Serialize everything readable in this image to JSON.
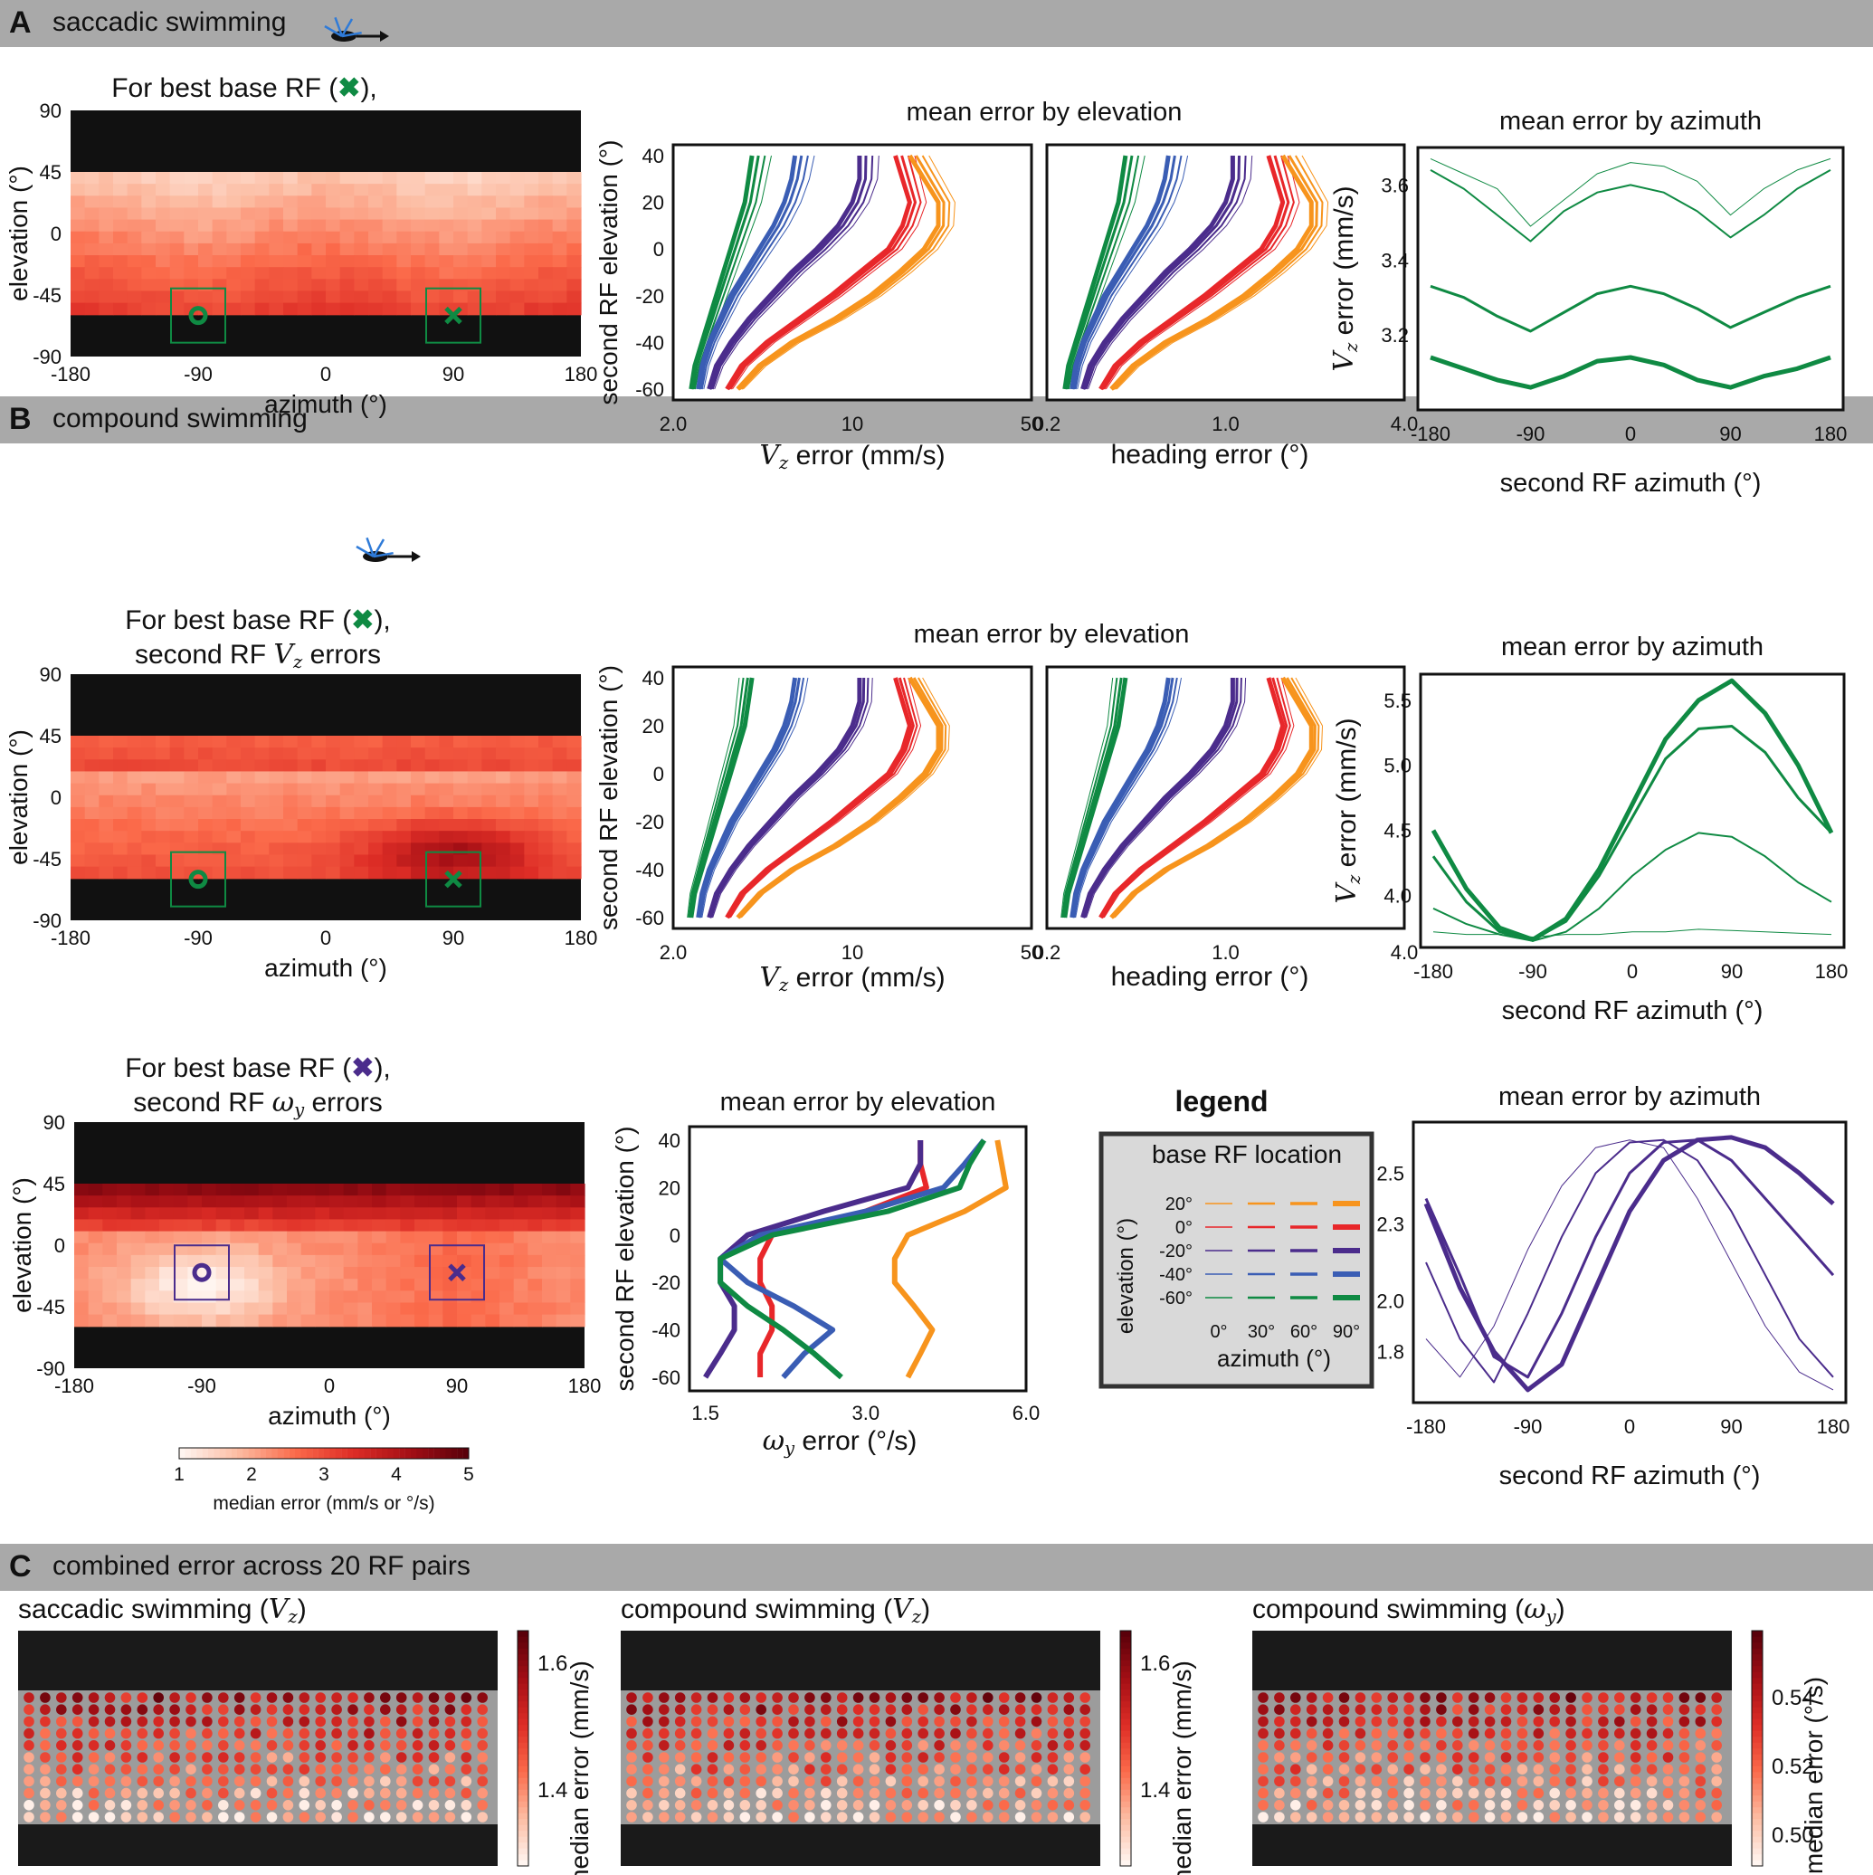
{
  "sections": {
    "A": {
      "letter": "A",
      "title": "saccadic swimming"
    },
    "B": {
      "letter": "B",
      "title": "compound swimming"
    },
    "C": {
      "letter": "C",
      "title": "combined error across 20 RF pairs"
    }
  },
  "common": {
    "azimuth_label": "azimuth (°)",
    "elevation_label": "elevation (°)",
    "second_rf_elevation": "second RF elevation (°)",
    "second_rf_azimuth": "second RF azimuth (°)",
    "mean_error_by_elevation": "mean error by elevation",
    "mean_error_by_azimuth": "mean error by azimuth",
    "heading_error": "heading error (°)",
    "vz_error": "error (mm/s)",
    "wy_error": "error (°/s)",
    "vz_symbol": "V",
    "vz_sub": "z",
    "wy_symbol": "ω",
    "wy_sub": "y",
    "heat_title_line1_pre": "For best base RF (",
    "heat_title_line1_post": "),",
    "heat_title_line2_pre": "second RF",
    "heat_title_line2_post": "errors",
    "heat_xticks": [
      "-180",
      "-90",
      "0",
      "90",
      "180"
    ],
    "heat_yticks": [
      "90",
      "45",
      "0",
      "-45",
      "-90"
    ],
    "elev_yticks": [
      "40",
      "20",
      "0",
      "-20",
      "-40",
      "-60"
    ],
    "az_xticks": [
      "-180",
      "-90",
      "0",
      "90",
      "180"
    ]
  },
  "colorbar": {
    "ticks": [
      "1",
      "2",
      "3",
      "4",
      "5"
    ],
    "label": "median error (mm/s or °/s)"
  },
  "legend": {
    "title": "legend",
    "box_title": "base RF location",
    "y_label": "elevation (°)",
    "x_label": "azimuth (°)",
    "rows": [
      "20°",
      "0°",
      "-20°",
      "-40°",
      "-60°"
    ],
    "cols": [
      "0°",
      "30°",
      "60°",
      "90°"
    ],
    "row_colors": [
      "#f7941d",
      "#e8272a",
      "#4b2c8c",
      "#3a5db4",
      "#0f8a43"
    ]
  },
  "colors": {
    "green": "#0f8a43",
    "purple": "#4b2c8c",
    "orange": "#f7941d",
    "red": "#e8272a",
    "blue": "#3a5db4"
  },
  "panel_C": {
    "titles": [
      "saccadic swimming (",
      "compound swimming (",
      "compound swimming ("
    ],
    "symbols": [
      "V",
      "V",
      "ω"
    ],
    "subs": [
      "z",
      "z",
      "y"
    ],
    "cb_labels": [
      "median error (mm/s)",
      "median error (mm/s)",
      "median error (°/s)"
    ],
    "cb_ticks": [
      [
        "1.6",
        "1.4"
      ],
      [
        "1.6",
        "1.4"
      ],
      [
        "0.54",
        "0.52",
        "0.50"
      ]
    ]
  },
  "chart_data": [
    {
      "type": "line",
      "id": "A-vz-azimuth",
      "title": "mean error by azimuth",
      "xlabel": "second RF azimuth (°)",
      "ylabel": "V_z error (mm/s)",
      "ylim": [
        3.0,
        3.7
      ],
      "yticks": [
        "3.6",
        "3.4",
        "3.2"
      ],
      "x": [
        -180,
        -150,
        -120,
        -90,
        -60,
        -30,
        0,
        30,
        60,
        90,
        120,
        150,
        180
      ],
      "series": [
        {
          "name": "",
          "width": 1,
          "values": [
            3.67,
            3.63,
            3.59,
            3.49,
            3.56,
            3.63,
            3.66,
            3.65,
            3.61,
            3.52,
            3.59,
            3.64,
            3.67
          ]
        },
        {
          "name": "",
          "width": 2,
          "values": [
            3.64,
            3.59,
            3.52,
            3.45,
            3.53,
            3.58,
            3.6,
            3.58,
            3.53,
            3.46,
            3.52,
            3.59,
            3.64
          ]
        },
        {
          "name": "",
          "width": 3,
          "values": [
            3.33,
            3.3,
            3.25,
            3.21,
            3.26,
            3.31,
            3.33,
            3.31,
            3.27,
            3.22,
            3.26,
            3.3,
            3.33
          ]
        },
        {
          "name": "",
          "width": 5,
          "values": [
            3.14,
            3.11,
            3.08,
            3.06,
            3.09,
            3.13,
            3.14,
            3.12,
            3.08,
            3.06,
            3.09,
            3.11,
            3.14
          ]
        }
      ]
    },
    {
      "type": "line",
      "id": "B-vz-azimuth",
      "title": "mean error by azimuth",
      "xlabel": "second RF azimuth (°)",
      "ylabel": "V_z error (mm/s)",
      "ylim": [
        3.6,
        5.7
      ],
      "yticks": [
        "5.5",
        "5.0",
        "4.5",
        "4.0"
      ],
      "x": [
        -180,
        -150,
        -120,
        -90,
        -60,
        -30,
        0,
        30,
        60,
        90,
        120,
        150,
        180
      ],
      "series": [
        {
          "name": "",
          "width": 1,
          "values": [
            3.72,
            3.7,
            3.7,
            3.68,
            3.7,
            3.7,
            3.72,
            3.72,
            3.74,
            3.73,
            3.72,
            3.71,
            3.7
          ]
        },
        {
          "name": "",
          "width": 2,
          "values": [
            3.9,
            3.78,
            3.7,
            3.65,
            3.72,
            3.9,
            4.15,
            4.35,
            4.48,
            4.45,
            4.3,
            4.1,
            3.95
          ]
        },
        {
          "name": "",
          "width": 3,
          "values": [
            4.3,
            3.95,
            3.72,
            3.66,
            3.8,
            4.15,
            4.6,
            5.05,
            5.28,
            5.3,
            5.1,
            4.75,
            4.48
          ]
        },
        {
          "name": "",
          "width": 5,
          "values": [
            4.5,
            4.05,
            3.75,
            3.66,
            3.82,
            4.2,
            4.7,
            5.2,
            5.5,
            5.65,
            5.4,
            5.0,
            4.48
          ]
        }
      ]
    },
    {
      "type": "line",
      "id": "B-wy-azimuth",
      "title": "mean error by azimuth",
      "xlabel": "second RF azimuth (°)",
      "ylabel": "ω_y error (°/s)",
      "ylim": [
        1.6,
        2.7
      ],
      "yticks": [
        "2.5",
        "2.3",
        "2.0",
        "1.8"
      ],
      "x": [
        -180,
        -150,
        -120,
        -90,
        -60,
        -30,
        0,
        30,
        60,
        90,
        120,
        150,
        180
      ],
      "series": [
        {
          "name": "",
          "width": 1,
          "values": [
            1.85,
            1.7,
            1.9,
            2.2,
            2.45,
            2.6,
            2.63,
            2.6,
            2.4,
            2.15,
            1.9,
            1.72,
            1.65
          ]
        },
        {
          "name": "",
          "width": 2,
          "values": [
            2.15,
            1.85,
            1.68,
            1.95,
            2.25,
            2.5,
            2.62,
            2.63,
            2.55,
            2.35,
            2.1,
            1.85,
            1.7
          ]
        },
        {
          "name": "",
          "width": 3,
          "values": [
            2.4,
            2.1,
            1.78,
            1.7,
            1.95,
            2.25,
            2.5,
            2.62,
            2.63,
            2.55,
            2.4,
            2.25,
            2.1
          ]
        },
        {
          "name": "",
          "width": 5,
          "values": [
            2.38,
            2.05,
            1.8,
            1.65,
            1.75,
            2.05,
            2.35,
            2.55,
            2.63,
            2.64,
            2.6,
            2.5,
            2.38
          ]
        }
      ]
    },
    {
      "type": "line",
      "id": "B-wy-elevation",
      "title": "mean error by elevation",
      "xlabel": "ω_y error (°/s)",
      "ylabel": "second RF elevation (°)",
      "xlim_log": [
        1.4,
        6.0
      ],
      "xticks": [
        "1.5",
        "3.0",
        "6.0"
      ],
      "y": [
        40,
        30,
        20,
        10,
        0,
        -10,
        -20,
        -30,
        -40,
        -50,
        -60
      ],
      "series": [
        {
          "name": "20°",
          "color": "#f7941d",
          "values": [
            5.3,
            5.4,
            5.5,
            4.6,
            3.6,
            3.4,
            3.4,
            3.7,
            4.0,
            3.8,
            3.6
          ]
        },
        {
          "name": "0°",
          "color": "#e8272a",
          "values": [
            3.8,
            3.8,
            3.9,
            3.0,
            2.0,
            1.9,
            1.9,
            2.0,
            2.0,
            1.9,
            1.9
          ]
        },
        {
          "name": "-20°",
          "color": "#4b2c8c",
          "values": [
            3.8,
            3.8,
            3.6,
            2.5,
            1.8,
            1.6,
            1.6,
            1.7,
            1.7,
            1.6,
            1.5
          ]
        },
        {
          "name": "-40°",
          "color": "#3a5db4",
          "values": [
            5.0,
            4.6,
            4.2,
            3.0,
            1.9,
            1.6,
            1.8,
            2.2,
            2.6,
            2.3,
            2.1
          ]
        },
        {
          "name": "-60°",
          "color": "#0f8a43",
          "values": [
            5.0,
            4.7,
            4.5,
            3.3,
            2.0,
            1.6,
            1.6,
            1.8,
            2.1,
            2.4,
            2.7
          ]
        }
      ]
    }
  ]
}
